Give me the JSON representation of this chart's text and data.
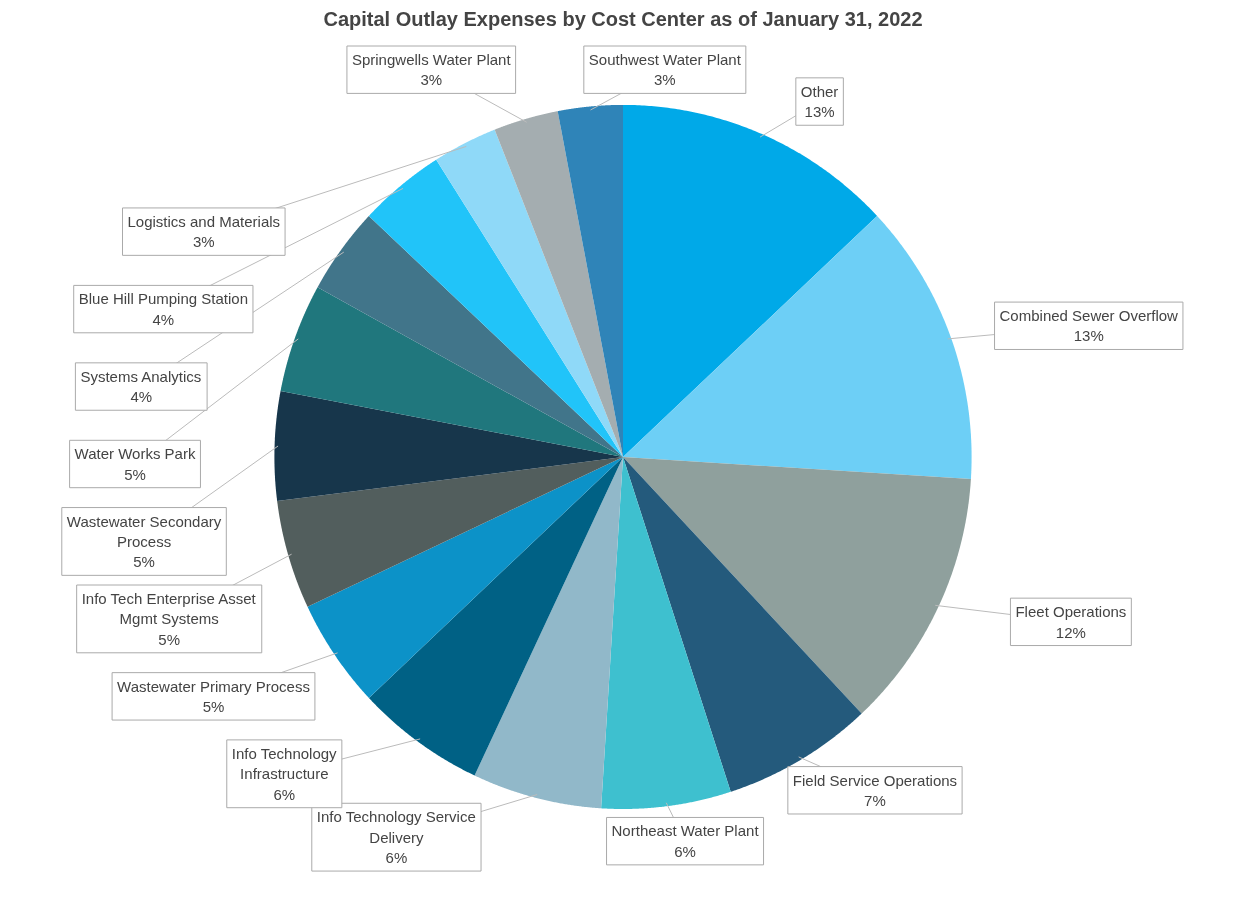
{
  "chart_data": {
    "type": "pie",
    "title": "Capital Outlay Expenses by Cost Center as of January 31, 2022",
    "categories": [
      "Other",
      "Combined Sewer Overflow",
      "Fleet Operations",
      "Field Service Operations",
      "Northeast Water Plant",
      "Info Technology Service Delivery",
      "Info Technology Infrastructure",
      "Wastewater Primary Process",
      "Info Tech Enterprise Asset Mgmt Systems",
      "Wastewater Secondary Process",
      "Water Works Park",
      "Systems Analytics",
      "Blue Hill Pumping Station",
      "Logistics and Materials",
      "Springwells Water Plant",
      "Southwest Water Plant"
    ],
    "values": [
      13,
      13,
      12,
      7,
      6,
      6,
      6,
      5,
      5,
      5,
      5,
      4,
      4,
      3,
      3,
      3
    ],
    "value_labels": [
      "13%",
      "13%",
      "12%",
      "7%",
      "6%",
      "6%",
      "6%",
      "5%",
      "5%",
      "5%",
      "5%",
      "4%",
      "4%",
      "3%",
      "3%",
      "3%"
    ],
    "colors": [
      "#00a9e8",
      "#6dcff6",
      "#8fa09d",
      "#245a7c",
      "#3ec0cf",
      "#91b8c9",
      "#006185",
      "#0c92c8",
      "#525e5d",
      "#17364b",
      "#20777d",
      "#41758a",
      "#21c4f9",
      "#8fd9f8",
      "#a4adb0",
      "#2f84b8"
    ]
  }
}
